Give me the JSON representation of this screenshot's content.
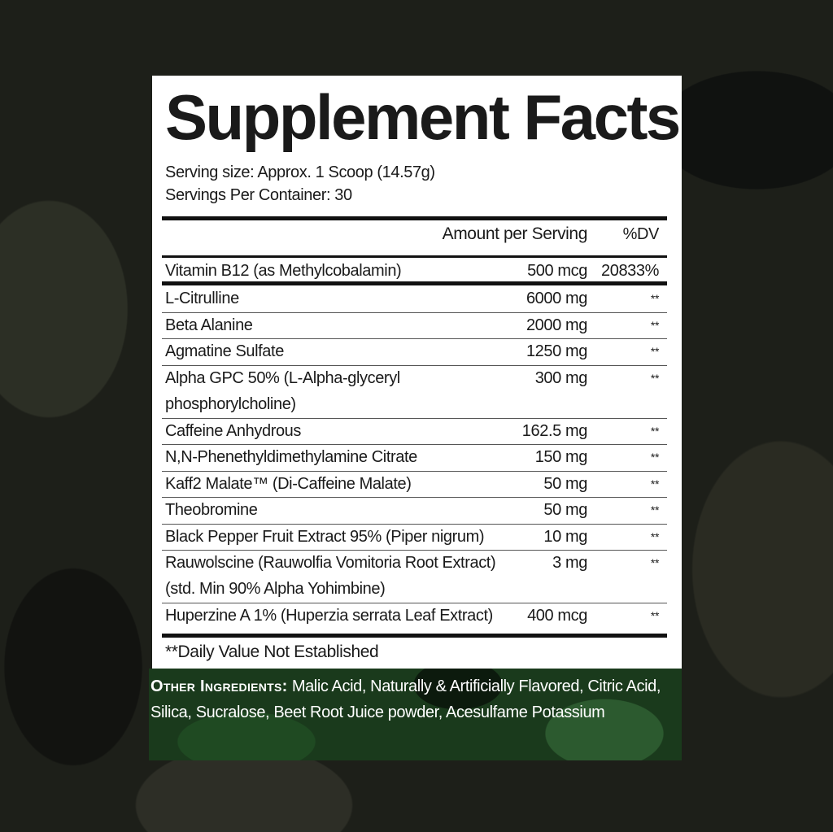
{
  "title": "Supplement Facts",
  "serving_size": "Serving size: Approx. 1 Scoop (14.57g)",
  "servings_per_container": "Servings Per Container: 30",
  "header": {
    "amount": "Amount per Serving",
    "dv": "%DV"
  },
  "vitamin": {
    "name": "Vitamin B12 (as Methylcobalamin)",
    "amount": "500 mcg",
    "dv": "20833%"
  },
  "ingredients": [
    {
      "name": "L-Citrulline",
      "amount": "6000 mg",
      "dv": "**"
    },
    {
      "name": "Beta Alanine",
      "amount": "2000 mg",
      "dv": "**"
    },
    {
      "name": "Agmatine Sulfate",
      "amount": "1250 mg",
      "dv": "**"
    },
    {
      "name": "Alpha GPC 50% (L-Alpha-glyceryl phosphorylcholine)",
      "amount": "300 mg",
      "dv": "**"
    },
    {
      "name": "Caffeine Anhydrous",
      "amount": "162.5 mg",
      "dv": "**"
    },
    {
      "name": "N,N-Phenethyldimethylamine Citrate",
      "amount": "150 mg",
      "dv": "**"
    },
    {
      "name": "Kaff2 Malate™ (Di-Caffeine Malate)",
      "amount": "50 mg",
      "dv": "**"
    },
    {
      "name": "Theobromine",
      "amount": "50 mg",
      "dv": "**"
    },
    {
      "name": "Black Pepper Fruit Extract 95% (Piper nigrum)",
      "amount": "10 mg",
      "dv": "**"
    },
    {
      "name": "Rauwolscine (Rauwolfia Vomitoria Root Extract) (std. Min 90% Alpha Yohimbine)",
      "amount": "3 mg",
      "dv": "**"
    },
    {
      "name": "Huperzine A 1% (Huperzia serrata Leaf Extract)",
      "amount": "400 mcg",
      "dv": "**"
    }
  ],
  "footnote": "**Daily Value Not Established",
  "other_ingredients": {
    "label": "Other Ingredients:",
    "text": "Malic Acid, Naturally & Artificially Flavored, Citric Acid, Silica, Sucralose, Beet Root Juice powder, Acesulfame Potassium"
  }
}
